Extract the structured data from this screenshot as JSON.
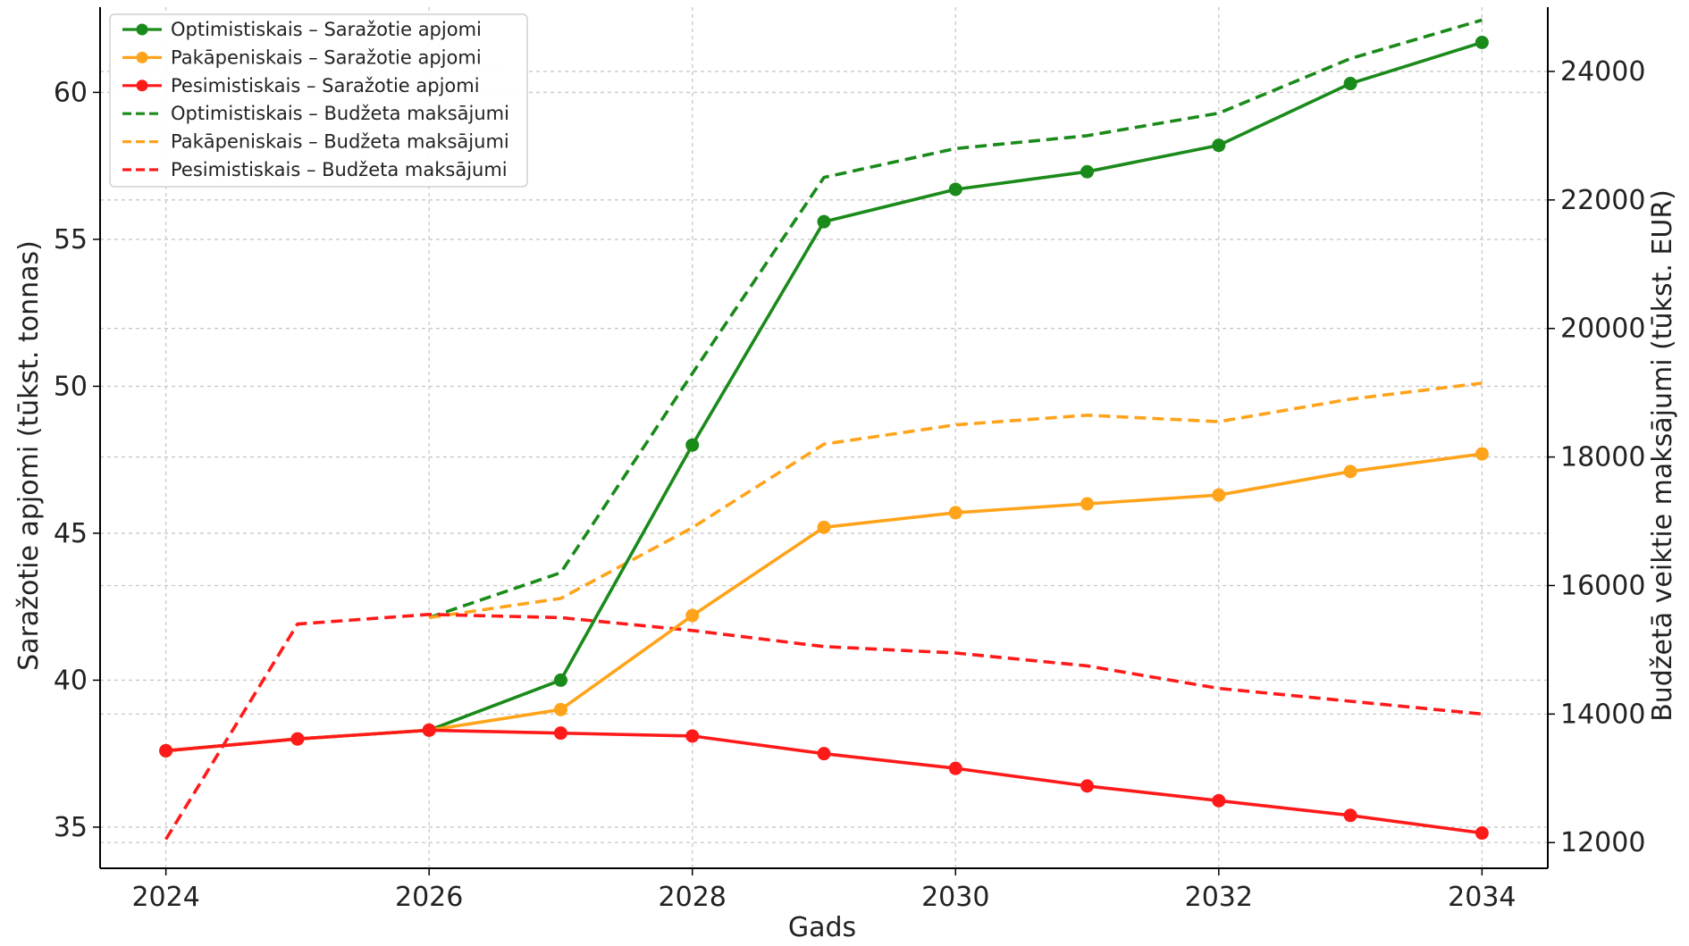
{
  "chart_data": {
    "type": "line",
    "x": [
      2024,
      2025,
      2026,
      2027,
      2028,
      2029,
      2030,
      2031,
      2032,
      2033,
      2034
    ],
    "xlabel": "Gads",
    "ylabel_left": "Saražotie apjomi (tūkst. tonnas)",
    "ylabel_right": "Budžetā veiktie maksājumi (tūkst. EUR)",
    "xlim": [
      2023.5,
      2034.5
    ],
    "ylim_left": [
      33.6,
      62.9
    ],
    "ylim_right": [
      11600,
      25000
    ],
    "x_ticks": [
      2024,
      2026,
      2028,
      2030,
      2032,
      2034
    ],
    "y_ticks_left": [
      35,
      40,
      45,
      50,
      55,
      60
    ],
    "y_ticks_right": [
      12000,
      14000,
      16000,
      18000,
      20000,
      22000,
      24000
    ],
    "grid": true,
    "legend_position": "top-left",
    "series": [
      {
        "name": "Optimistiskais – Saražotie apjomi",
        "axis": "left",
        "style": "solid",
        "marker": true,
        "color": "#1a8a1a",
        "values": [
          37.6,
          38.0,
          38.3,
          40.0,
          48.0,
          55.6,
          56.7,
          57.3,
          58.2,
          60.3,
          61.7
        ]
      },
      {
        "name": "Pakāpeniskais – Saražotie apjomi",
        "axis": "left",
        "style": "solid",
        "marker": true,
        "color": "#ffa31a",
        "values": [
          37.6,
          38.0,
          38.3,
          39.0,
          42.2,
          45.2,
          45.7,
          46.0,
          46.3,
          47.1,
          47.7
        ]
      },
      {
        "name": "Pesimistiskais – Saražotie apjomi",
        "axis": "left",
        "style": "solid",
        "marker": true,
        "color": "#ff1a1a",
        "values": [
          37.6,
          38.0,
          38.3,
          38.2,
          38.1,
          37.5,
          37.0,
          36.4,
          35.9,
          35.4,
          34.8
        ]
      },
      {
        "name": "Optimistiskais – Budžeta maksājumi",
        "axis": "right",
        "style": "dashed",
        "marker": false,
        "color": "#1a8a1a",
        "values": [
          null,
          null,
          15500,
          16200,
          19300,
          22350,
          22800,
          23000,
          23350,
          24200,
          24800
        ]
      },
      {
        "name": "Pakāpeniskais – Budžeta maksājumi",
        "axis": "right",
        "style": "dashed",
        "marker": false,
        "color": "#ffa31a",
        "values": [
          null,
          null,
          15500,
          15800,
          16900,
          18200,
          18500,
          18650,
          18550,
          18900,
          19150
        ]
      },
      {
        "name": "Pesimistiskais – Budžeta maksājumi",
        "axis": "right",
        "style": "dashed",
        "marker": false,
        "color": "#ff1a1a",
        "values": [
          12050,
          15400,
          15550,
          15500,
          15300,
          15050,
          14950,
          14750,
          14400,
          14200,
          14000
        ]
      }
    ]
  }
}
